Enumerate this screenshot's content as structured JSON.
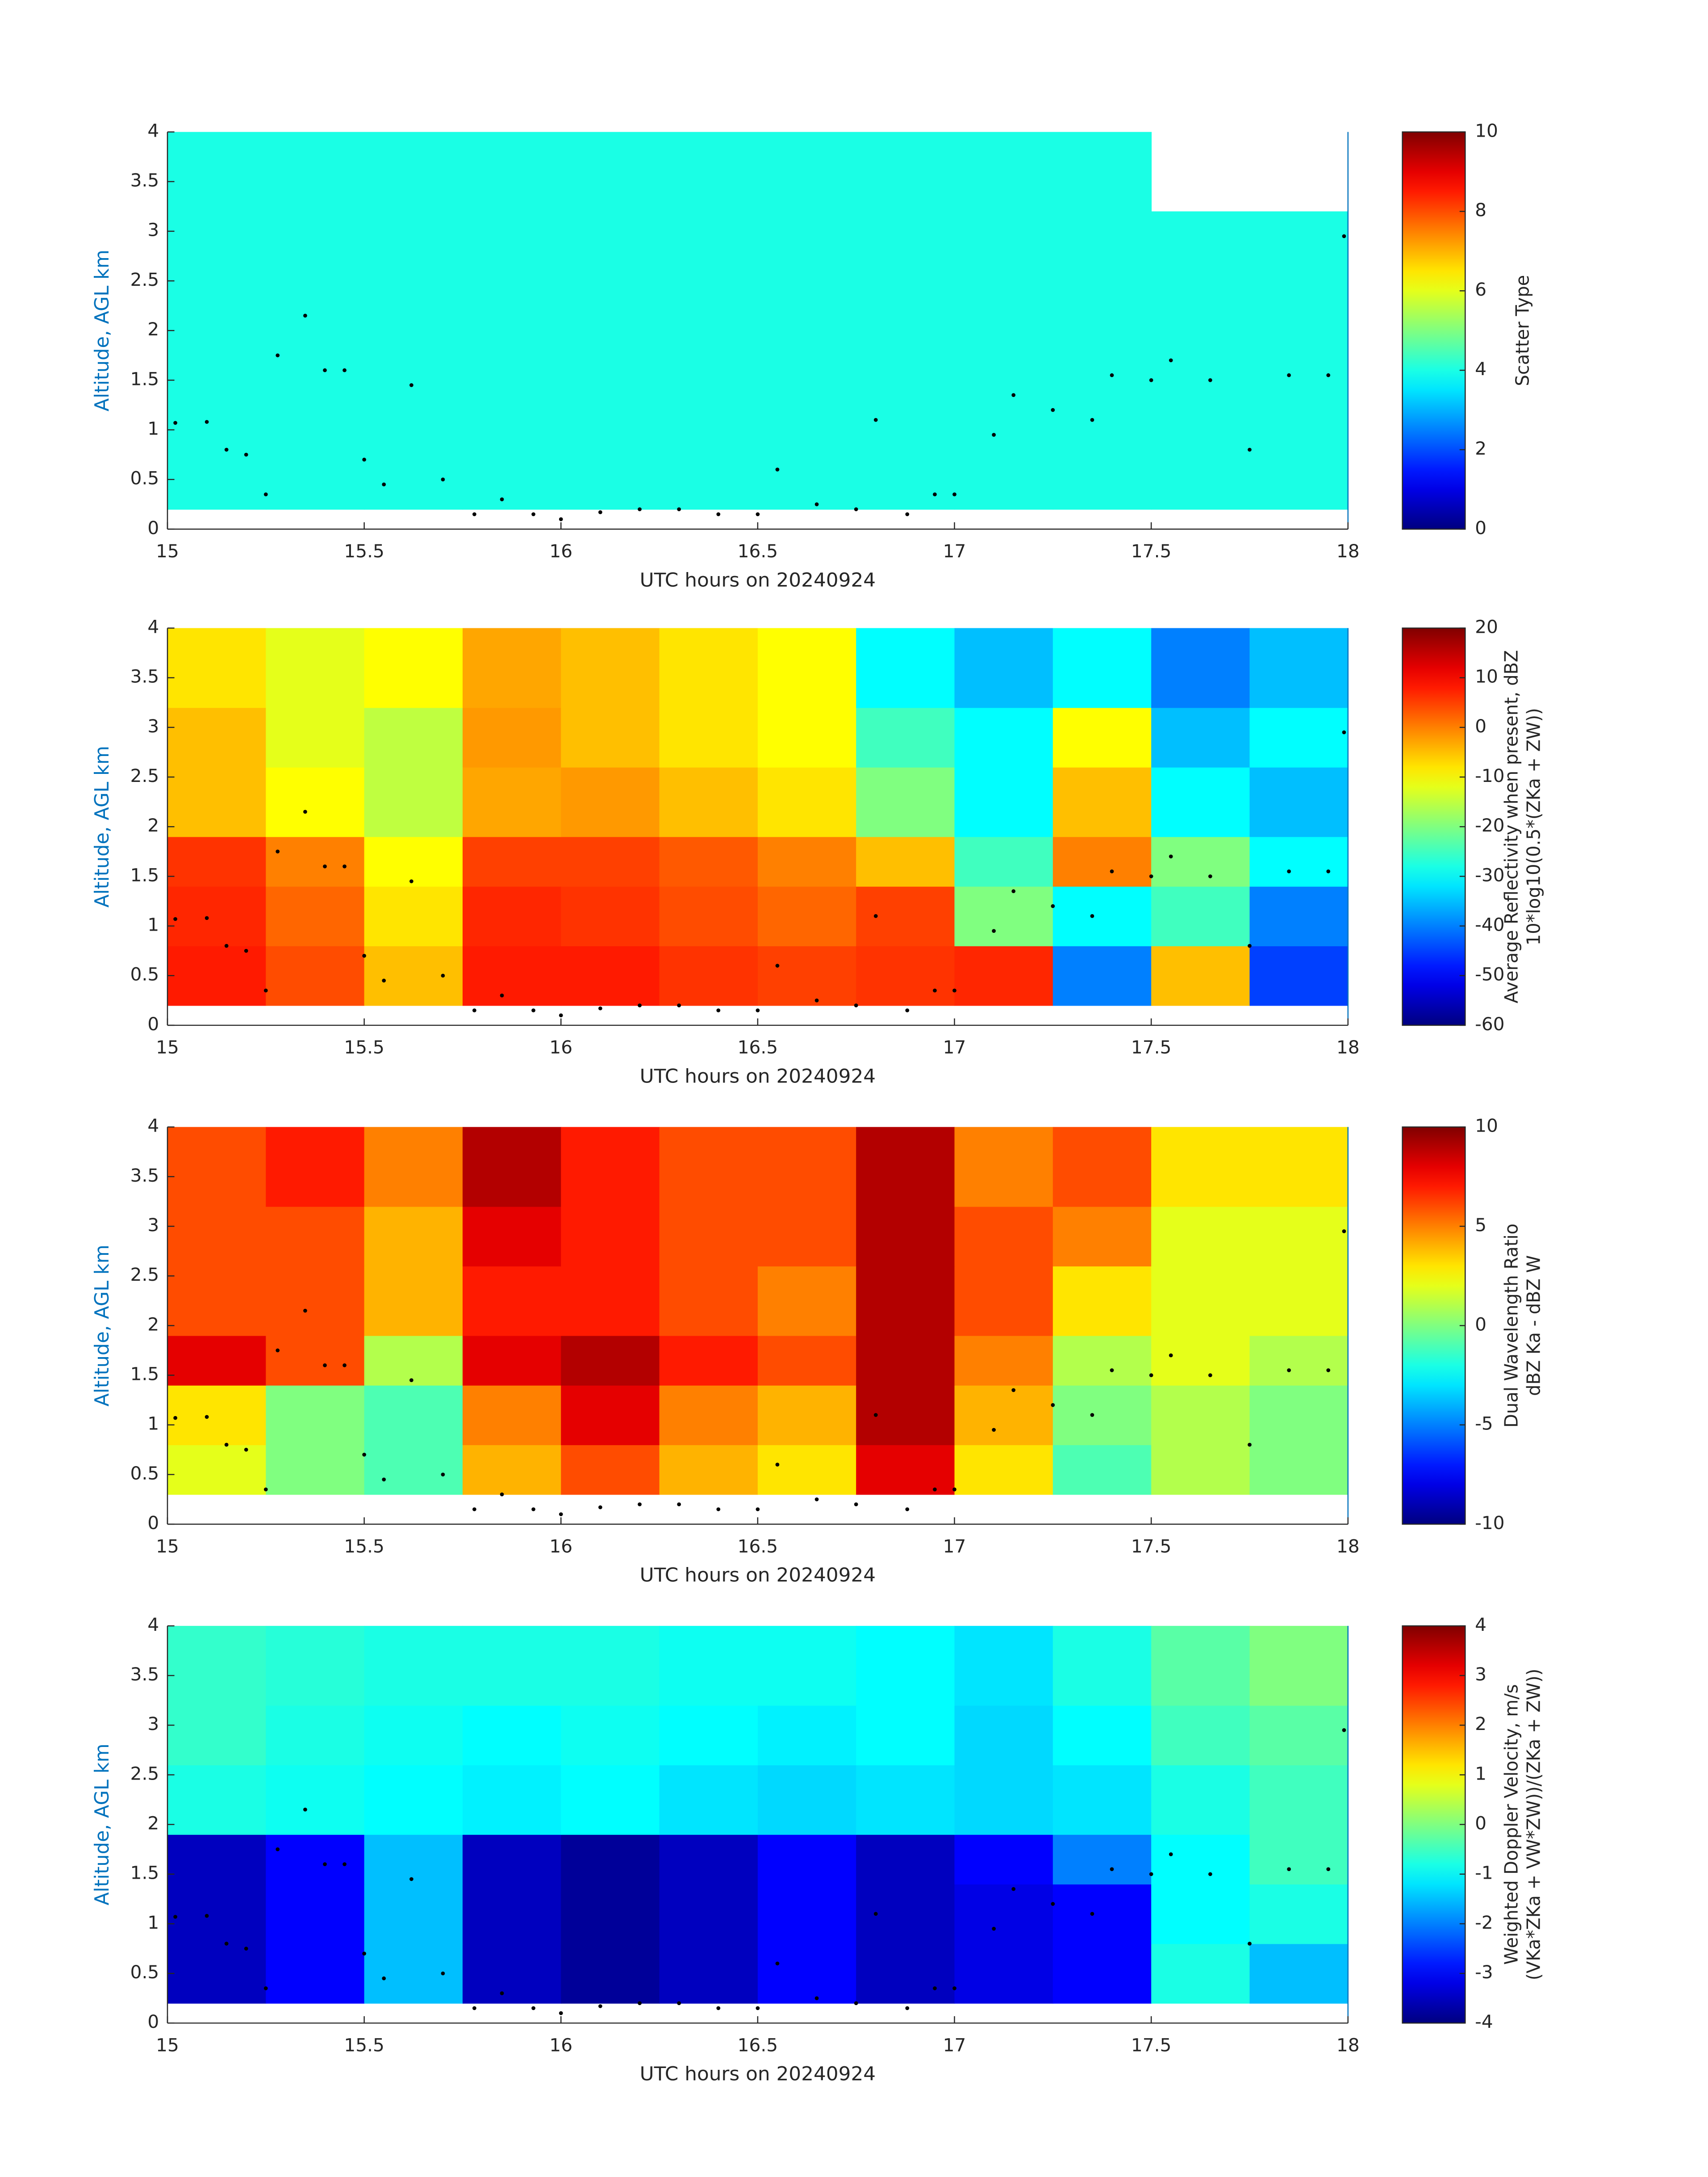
{
  "chart_data": [
    {
      "type": "heatmap",
      "xlabel": "UTC hours on 20240924",
      "ylabel": "Altitude, AGL km",
      "colorbar_label": [
        "Scatter Type"
      ],
      "xlim": [
        15,
        18
      ],
      "ylim": [
        0,
        4
      ],
      "xticks": [
        15,
        15.5,
        16,
        16.5,
        17,
        17.5,
        18
      ],
      "yticks": [
        0,
        0.5,
        1,
        1.5,
        2,
        2.5,
        3,
        3.5,
        4
      ],
      "clim": [
        0,
        10
      ],
      "cticks": [
        0,
        2,
        4,
        6,
        8,
        10
      ],
      "x_edges": [
        15,
        15.25,
        15.5,
        15.75,
        16,
        16.25,
        16.5,
        16.75,
        17,
        17.25,
        17.5,
        17.75,
        18
      ],
      "y_edges": [
        0.2,
        0.8,
        1.4,
        1.9,
        2.6,
        3.2,
        4.0
      ],
      "z": [
        [
          4,
          4,
          4,
          4,
          4,
          4,
          4,
          4,
          4,
          4,
          4,
          4
        ],
        [
          4,
          4,
          4,
          4,
          4,
          4,
          4,
          4,
          4,
          4,
          4,
          4
        ],
        [
          4,
          4,
          4,
          4,
          4,
          4,
          4,
          4,
          4,
          4,
          4,
          4
        ],
        [
          4,
          4,
          4,
          4,
          4,
          4,
          4,
          4,
          4,
          4,
          4,
          4
        ],
        [
          4,
          4,
          4,
          4,
          4,
          4,
          4,
          4,
          4,
          4,
          4,
          4
        ],
        [
          4,
          4,
          4,
          4,
          4,
          4,
          4,
          4,
          4,
          4,
          null,
          null
        ]
      ],
      "points": {
        "x": [
          15.02,
          15.1,
          15.15,
          15.2,
          15.25,
          15.28,
          15.35,
          15.4,
          15.45,
          15.5,
          15.55,
          15.62,
          15.7,
          15.78,
          15.85,
          15.93,
          16.0,
          16.1,
          16.2,
          16.3,
          16.4,
          16.5,
          16.55,
          16.65,
          16.75,
          16.8,
          16.88,
          16.95,
          17.0,
          17.1,
          17.15,
          17.25,
          17.35,
          17.4,
          17.5,
          17.55,
          17.65,
          17.75,
          17.85,
          17.95,
          17.99
        ],
        "y": [
          1.07,
          1.08,
          0.8,
          0.75,
          0.35,
          1.75,
          2.15,
          1.6,
          1.6,
          0.7,
          0.45,
          1.45,
          0.5,
          0.15,
          0.3,
          0.15,
          0.1,
          0.17,
          0.2,
          0.2,
          0.15,
          0.15,
          0.6,
          0.25,
          0.2,
          1.1,
          0.15,
          0.35,
          0.35,
          0.95,
          1.35,
          1.2,
          1.1,
          1.55,
          1.5,
          1.7,
          1.5,
          0.8,
          1.55,
          1.55,
          2.95
        ]
      }
    },
    {
      "type": "heatmap",
      "xlabel": "UTC hours on 20240924",
      "ylabel": "Altitude, AGL km",
      "colorbar_label": [
        "Average Reflectivity when present, dBZ",
        "10*log10(0.5*(ZKa + ZW))"
      ],
      "xlim": [
        15,
        18
      ],
      "ylim": [
        0,
        4
      ],
      "xticks": [
        15,
        15.5,
        16,
        16.5,
        17,
        17.5,
        18
      ],
      "yticks": [
        0,
        0.5,
        1,
        1.5,
        2,
        2.5,
        3,
        3.5,
        4
      ],
      "clim": [
        -60,
        20
      ],
      "cticks": [
        -60,
        -50,
        -40,
        -30,
        -20,
        -10,
        0,
        10,
        20
      ],
      "x_edges": [
        15,
        15.25,
        15.5,
        15.75,
        16,
        16.25,
        16.5,
        16.75,
        17,
        17.25,
        17.5,
        17.75,
        18
      ],
      "y_edges": [
        0.2,
        0.8,
        1.4,
        1.9,
        2.6,
        3.2,
        4.0
      ],
      "z": [
        [
          8,
          4,
          -5,
          8,
          8,
          6,
          5,
          6,
          7,
          -40,
          -5,
          -45
        ],
        [
          7,
          2,
          -8,
          7,
          6,
          4,
          2,
          5,
          -20,
          -30,
          -25,
          -40
        ],
        [
          6,
          0,
          -10,
          5,
          5,
          3,
          0,
          -5,
          -25,
          0,
          -20,
          -30
        ],
        [
          -5,
          -10,
          -15,
          -3,
          -2,
          -5,
          -8,
          -20,
          -30,
          -5,
          -30,
          -35
        ],
        [
          -5,
          -12,
          -15,
          -2,
          -5,
          -8,
          -10,
          -25,
          -30,
          -10,
          -35,
          -30
        ],
        [
          -8,
          -12,
          -10,
          -3,
          -5,
          -8,
          -10,
          -30,
          -35,
          -30,
          -40,
          -35
        ]
      ],
      "points": {
        "x": [
          15.02,
          15.1,
          15.15,
          15.2,
          15.25,
          15.28,
          15.35,
          15.4,
          15.45,
          15.5,
          15.55,
          15.62,
          15.7,
          15.78,
          15.85,
          15.93,
          16.0,
          16.1,
          16.2,
          16.3,
          16.4,
          16.5,
          16.55,
          16.65,
          16.75,
          16.8,
          16.88,
          16.95,
          17.0,
          17.1,
          17.15,
          17.25,
          17.35,
          17.4,
          17.5,
          17.55,
          17.65,
          17.75,
          17.85,
          17.95,
          17.99
        ],
        "y": [
          1.07,
          1.08,
          0.8,
          0.75,
          0.35,
          1.75,
          2.15,
          1.6,
          1.6,
          0.7,
          0.45,
          1.45,
          0.5,
          0.15,
          0.3,
          0.15,
          0.1,
          0.17,
          0.2,
          0.2,
          0.15,
          0.15,
          0.6,
          0.25,
          0.2,
          1.1,
          0.15,
          0.35,
          0.35,
          0.95,
          1.35,
          1.2,
          1.1,
          1.55,
          1.5,
          1.7,
          1.5,
          0.8,
          1.55,
          1.55,
          2.95
        ]
      }
    },
    {
      "type": "heatmap",
      "xlabel": "UTC hours on 20240924",
      "ylabel": "Altitude, AGL km",
      "colorbar_label": [
        "Dual Wavelength Ratio",
        "dBZ Ka - dBZ W"
      ],
      "xlim": [
        15,
        18
      ],
      "ylim": [
        0,
        4
      ],
      "xticks": [
        15,
        15.5,
        16,
        16.5,
        17,
        17.5,
        18
      ],
      "yticks": [
        0,
        0.5,
        1,
        1.5,
        2,
        2.5,
        3,
        3.5,
        4
      ],
      "clim": [
        -10,
        10
      ],
      "cticks": [
        -10,
        -5,
        0,
        5,
        10
      ],
      "x_edges": [
        15,
        15.25,
        15.5,
        15.75,
        16,
        16.25,
        16.5,
        16.75,
        17,
        17.25,
        17.5,
        17.75,
        18
      ],
      "y_edges": [
        0.3,
        0.8,
        1.4,
        1.9,
        2.6,
        3.2,
        4.0
      ],
      "z": [
        [
          2,
          0,
          -1,
          4,
          6,
          4,
          3,
          8,
          3,
          -1,
          1,
          0
        ],
        [
          3,
          0,
          -1,
          5,
          8,
          5,
          4,
          9,
          4,
          0,
          1,
          0
        ],
        [
          8,
          6,
          1,
          8,
          9,
          7,
          6,
          9,
          5,
          1,
          2,
          1
        ],
        [
          6,
          6,
          4,
          7,
          7,
          6,
          5,
          9,
          6,
          3,
          2,
          2
        ],
        [
          6,
          6,
          4,
          8,
          7,
          6,
          6,
          9,
          6,
          5,
          2,
          2
        ],
        [
          6,
          7,
          5,
          9,
          7,
          6,
          6,
          9,
          5,
          6,
          3,
          3
        ]
      ],
      "points": {
        "x": [
          15.02,
          15.1,
          15.15,
          15.2,
          15.25,
          15.28,
          15.35,
          15.4,
          15.45,
          15.5,
          15.55,
          15.62,
          15.7,
          15.78,
          15.85,
          15.93,
          16.0,
          16.1,
          16.2,
          16.3,
          16.4,
          16.5,
          16.55,
          16.65,
          16.75,
          16.8,
          16.88,
          16.95,
          17.0,
          17.1,
          17.15,
          17.25,
          17.35,
          17.4,
          17.5,
          17.55,
          17.65,
          17.75,
          17.85,
          17.95,
          17.99
        ],
        "y": [
          1.07,
          1.08,
          0.8,
          0.75,
          0.35,
          1.75,
          2.15,
          1.6,
          1.6,
          0.7,
          0.45,
          1.45,
          0.5,
          0.15,
          0.3,
          0.15,
          0.1,
          0.17,
          0.2,
          0.2,
          0.15,
          0.15,
          0.6,
          0.25,
          0.2,
          1.1,
          0.15,
          0.35,
          0.35,
          0.95,
          1.35,
          1.2,
          1.1,
          1.55,
          1.5,
          1.7,
          1.5,
          0.8,
          1.55,
          1.55,
          2.95
        ]
      }
    },
    {
      "type": "heatmap",
      "xlabel": "UTC hours on 20240924",
      "ylabel": "Altitude, AGL km",
      "colorbar_label": [
        "Weighted Doppler Velocity, m/s",
        "(VKa*ZKa + VW*ZW))/(ZKa + ZW))"
      ],
      "xlim": [
        15,
        18
      ],
      "ylim": [
        0,
        4
      ],
      "xticks": [
        15,
        15.5,
        16,
        16.5,
        17,
        17.5,
        18
      ],
      "yticks": [
        0,
        0.5,
        1,
        1.5,
        2,
        2.5,
        3,
        3.5,
        4
      ],
      "clim": [
        -4,
        4
      ],
      "cticks": [
        -4,
        -3,
        -2,
        -1,
        0,
        1,
        2,
        3,
        4
      ],
      "x_edges": [
        15,
        15.25,
        15.5,
        15.75,
        16,
        16.25,
        16.5,
        16.75,
        17,
        17.25,
        17.5,
        17.75,
        18
      ],
      "y_edges": [
        0.2,
        0.8,
        1.4,
        1.9,
        2.6,
        3.2,
        4.0
      ],
      "z": [
        [
          -3.5,
          -3,
          -1.5,
          -3.5,
          -3.8,
          -3.5,
          -3,
          -3.5,
          -3.2,
          -3,
          -0.8,
          -1.5
        ],
        [
          -3.5,
          -3,
          -1.5,
          -3.5,
          -3.8,
          -3.5,
          -3,
          -3.5,
          -3.2,
          -3,
          -1,
          -0.8
        ],
        [
          -3.5,
          -3,
          -1.5,
          -3.5,
          -3.8,
          -3.5,
          -3,
          -3.5,
          -3,
          -2,
          -1,
          -0.5
        ],
        [
          -0.8,
          -0.9,
          -1,
          -1.1,
          -1,
          -1.2,
          -1.3,
          -1.2,
          -1.3,
          -1.2,
          -0.8,
          -0.5
        ],
        [
          -0.6,
          -0.8,
          -0.9,
          -1,
          -0.9,
          -1,
          -1.1,
          -1,
          -1.3,
          -1,
          -0.5,
          -0.3
        ],
        [
          -0.6,
          -0.7,
          -0.8,
          -0.8,
          -0.8,
          -0.9,
          -0.9,
          -1,
          -1.2,
          -0.8,
          -0.3,
          0
        ]
      ],
      "points": {
        "x": [
          15.02,
          15.1,
          15.15,
          15.2,
          15.25,
          15.28,
          15.35,
          15.4,
          15.45,
          15.5,
          15.55,
          15.62,
          15.7,
          15.78,
          15.85,
          15.93,
          16.0,
          16.1,
          16.2,
          16.3,
          16.4,
          16.5,
          16.55,
          16.65,
          16.75,
          16.8,
          16.88,
          16.95,
          17.0,
          17.1,
          17.15,
          17.25,
          17.35,
          17.4,
          17.5,
          17.55,
          17.65,
          17.75,
          17.85,
          17.95,
          17.99
        ],
        "y": [
          1.07,
          1.08,
          0.8,
          0.75,
          0.35,
          1.75,
          2.15,
          1.6,
          1.6,
          0.7,
          0.45,
          1.45,
          0.5,
          0.15,
          0.3,
          0.15,
          0.1,
          0.17,
          0.2,
          0.2,
          0.15,
          0.15,
          0.6,
          0.25,
          0.2,
          1.1,
          0.15,
          0.35,
          0.35,
          0.95,
          1.35,
          1.2,
          1.1,
          1.55,
          1.5,
          1.7,
          1.5,
          0.8,
          1.55,
          1.55,
          2.95
        ]
      }
    }
  ]
}
